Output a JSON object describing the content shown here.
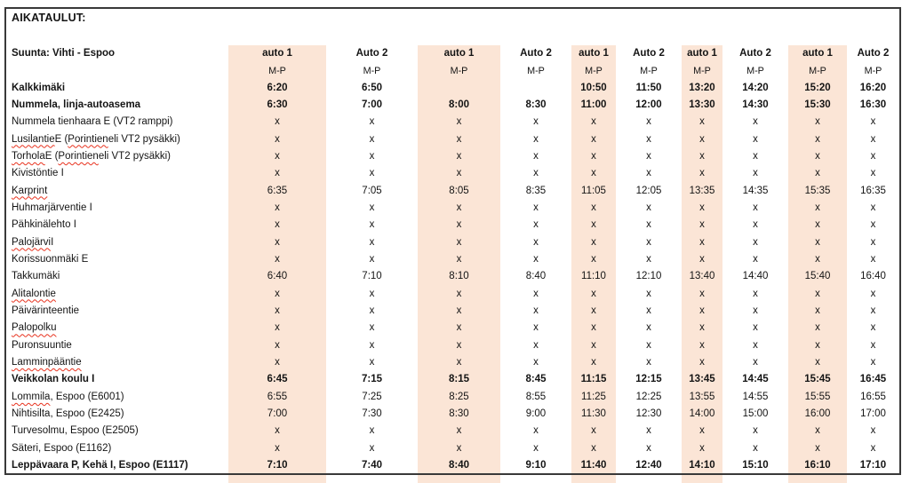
{
  "title": "AIKATAULUT:",
  "direction_label": "Suunta: Vihti - Espoo",
  "colors": {
    "highlight": "#FBE5D6",
    "squiggle_red": "#E8321E"
  },
  "columns": [
    {
      "vehicle": "auto 1",
      "days": "M-P",
      "highlighted": true
    },
    {
      "vehicle": "Auto 2",
      "days": "M-P",
      "highlighted": false
    },
    {
      "vehicle": "auto 1",
      "days": "M-P",
      "highlighted": true
    },
    {
      "vehicle": "Auto 2",
      "days": "M-P",
      "highlighted": false
    },
    {
      "vehicle": "auto 1",
      "days": "M-P",
      "highlighted": true
    },
    {
      "vehicle": "Auto 2",
      "days": "M-P",
      "highlighted": false
    },
    {
      "vehicle": "auto 1",
      "days": "M-P",
      "highlighted": true
    },
    {
      "vehicle": "Auto 2",
      "days": "M-P",
      "highlighted": false
    },
    {
      "vehicle": "auto 1",
      "days": "M-P",
      "highlighted": true
    },
    {
      "vehicle": "Auto 2",
      "days": "M-P",
      "highlighted": false
    }
  ],
  "rows": [
    {
      "bold": true,
      "stop": [
        {
          "t": "Kalkkimäki"
        }
      ],
      "times": [
        "6:20",
        "6:50",
        "",
        "",
        "10:50",
        "11:50",
        "13:20",
        "14:20",
        "15:20",
        "16:20"
      ]
    },
    {
      "bold": true,
      "stop": [
        {
          "t": "Nummela, linja-autoasema"
        }
      ],
      "times": [
        "6:30",
        "7:00",
        "8:00",
        "8:30",
        "11:00",
        "12:00",
        "13:30",
        "14:30",
        "15:30",
        "16:30"
      ]
    },
    {
      "bold": false,
      "stop": [
        {
          "t": "Nummela tienhaara E (VT2 ramppi)"
        }
      ],
      "times": [
        "x",
        "x",
        "x",
        "x",
        "x",
        "x",
        "x",
        "x",
        "x",
        "x"
      ]
    },
    {
      "bold": false,
      "stop": [
        {
          "t": "Lusilantie",
          "w": true
        },
        {
          "t": " E ("
        },
        {
          "t": "Porintien",
          "w": true
        },
        {
          "t": " eli VT2 pysäkki)"
        }
      ],
      "times": [
        "x",
        "x",
        "x",
        "x",
        "x",
        "x",
        "x",
        "x",
        "x",
        "x"
      ]
    },
    {
      "bold": false,
      "stop": [
        {
          "t": "Torhola",
          "w": true
        },
        {
          "t": " E ("
        },
        {
          "t": "Porintien",
          "w": true
        },
        {
          "t": " eli VT2 pysäkki)"
        }
      ],
      "times": [
        "x",
        "x",
        "x",
        "x",
        "x",
        "x",
        "x",
        "x",
        "x",
        "x"
      ]
    },
    {
      "bold": false,
      "stop": [
        {
          "t": "Kivistöntie I"
        }
      ],
      "times": [
        "x",
        "x",
        "x",
        "x",
        "x",
        "x",
        "x",
        "x",
        "x",
        "x"
      ]
    },
    {
      "bold": false,
      "stop": [
        {
          "t": "Karprint",
          "w": true
        }
      ],
      "times": [
        "6:35",
        "7:05",
        "8:05",
        "8:35",
        "11:05",
        "12:05",
        "13:35",
        "14:35",
        "15:35",
        "16:35"
      ]
    },
    {
      "bold": false,
      "stop": [
        {
          "t": "Huhmarjärventie I"
        }
      ],
      "times": [
        "x",
        "x",
        "x",
        "x",
        "x",
        "x",
        "x",
        "x",
        "x",
        "x"
      ]
    },
    {
      "bold": false,
      "stop": [
        {
          "t": "Pähkinälehto I"
        }
      ],
      "times": [
        "x",
        "x",
        "x",
        "x",
        "x",
        "x",
        "x",
        "x",
        "x",
        "x"
      ]
    },
    {
      "bold": false,
      "stop": [
        {
          "t": "Palojärvi",
          "w": true
        },
        {
          "t": " I"
        }
      ],
      "times": [
        "x",
        "x",
        "x",
        "x",
        "x",
        "x",
        "x",
        "x",
        "x",
        "x"
      ]
    },
    {
      "bold": false,
      "stop": [
        {
          "t": "Korissuonmäki E"
        }
      ],
      "times": [
        "x",
        "x",
        "x",
        "x",
        "x",
        "x",
        "x",
        "x",
        "x",
        "x"
      ]
    },
    {
      "bold": false,
      "stop": [
        {
          "t": "Takkumäki"
        }
      ],
      "times": [
        "6:40",
        "7:10",
        "8:10",
        "8:40",
        "11:10",
        "12:10",
        "13:40",
        "14:40",
        "15:40",
        "16:40"
      ]
    },
    {
      "bold": false,
      "stop": [
        {
          "t": "Alitalontie",
          "w": true
        }
      ],
      "times": [
        "x",
        "x",
        "x",
        "x",
        "x",
        "x",
        "x",
        "x",
        "x",
        "x"
      ]
    },
    {
      "bold": false,
      "stop": [
        {
          "t": "Päivärinteentie"
        }
      ],
      "times": [
        "x",
        "x",
        "x",
        "x",
        "x",
        "x",
        "x",
        "x",
        "x",
        "x"
      ]
    },
    {
      "bold": false,
      "stop": [
        {
          "t": "Palopolku",
          "w": true
        }
      ],
      "times": [
        "x",
        "x",
        "x",
        "x",
        "x",
        "x",
        "x",
        "x",
        "x",
        "x"
      ]
    },
    {
      "bold": false,
      "stop": [
        {
          "t": "Puronsuuntie"
        }
      ],
      "times": [
        "x",
        "x",
        "x",
        "x",
        "x",
        "x",
        "x",
        "x",
        "x",
        "x"
      ]
    },
    {
      "bold": false,
      "stop": [
        {
          "t": "Lamminpääntie",
          "w": true
        }
      ],
      "times": [
        "x",
        "x",
        "x",
        "x",
        "x",
        "x",
        "x",
        "x",
        "x",
        "x"
      ]
    },
    {
      "bold": true,
      "stop": [
        {
          "t": "Veikkolan koulu I"
        }
      ],
      "times": [
        "6:45",
        "7:15",
        "8:15",
        "8:45",
        "11:15",
        "12:15",
        "13:45",
        "14:45",
        "15:45",
        "16:45"
      ]
    },
    {
      "bold": false,
      "stop": [
        {
          "t": "Lommila",
          "w": true
        },
        {
          "t": ", Espoo (E6001)"
        }
      ],
      "times": [
        "6:55",
        "7:25",
        "8:25",
        "8:55",
        "11:25",
        "12:25",
        "13:55",
        "14:55",
        "15:55",
        "16:55"
      ]
    },
    {
      "bold": false,
      "stop": [
        {
          "t": "Nihtisilta, Espoo (E2425)"
        }
      ],
      "times": [
        "7:00",
        "7:30",
        "8:30",
        "9:00",
        "11:30",
        "12:30",
        "14:00",
        "15:00",
        "16:00",
        "17:00"
      ]
    },
    {
      "bold": false,
      "stop": [
        {
          "t": "Turvesolmu, Espoo (E2505)"
        }
      ],
      "times": [
        "x",
        "x",
        "x",
        "x",
        "x",
        "x",
        "x",
        "x",
        "x",
        "x"
      ]
    },
    {
      "bold": false,
      "stop": [
        {
          "t": "Säteri, Espoo (E1162)"
        }
      ],
      "times": [
        "x",
        "x",
        "x",
        "x",
        "x",
        "x",
        "x",
        "x",
        "x",
        "x"
      ]
    },
    {
      "bold": true,
      "stop": [
        {
          "t": "Leppävaara P, Kehä I, Espoo (E1117)"
        }
      ],
      "times": [
        "7:10",
        "7:40",
        "8:40",
        "9:10",
        "11:40",
        "12:40",
        "14:10",
        "15:10",
        "16:10",
        "17:10"
      ]
    }
  ]
}
